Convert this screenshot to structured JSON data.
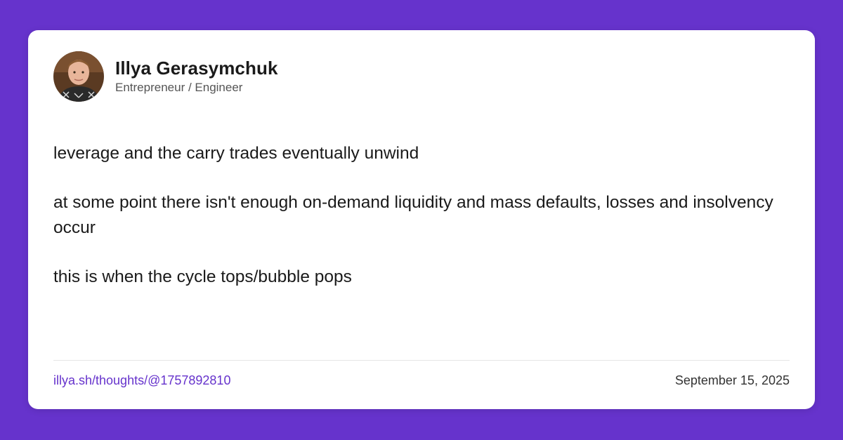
{
  "colors": {
    "background": "#6633cc",
    "card": "#ffffff",
    "accent": "#6633cc",
    "text": "#1a1a1a",
    "muted": "#555555"
  },
  "author": {
    "name": "Illya Gerasymchuk",
    "title": "Entrepreneur / Engineer",
    "avatar_icon": "avatar-photo"
  },
  "post": {
    "paragraphs": [
      "leverage and the carry trades eventually unwind",
      "at some point there isn't enough on-demand liquidity and mass defaults, losses and insolvency occur",
      "this is when the cycle tops/bubble pops"
    ]
  },
  "footer": {
    "link": "illya.sh/thoughts/@1757892810",
    "date": "September 15, 2025"
  }
}
